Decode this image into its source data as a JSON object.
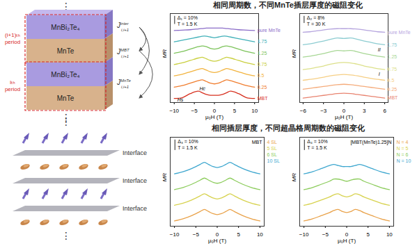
{
  "headings": [
    "相同周期数，不同MnTe插层厚度的磁阻变化",
    "相同插层厚度，不同超晶格周期数的磁阻变化"
  ],
  "diagram": {
    "continuation": "⋮",
    "periods": [
      {
        "label": "(i+1)ₜₕ period",
        "layers": [
          "MnBi₂Te₄",
          "MnTe"
        ]
      },
      {
        "label": "iₜₕ period",
        "layers": [
          "MnBi₂Te₄",
          "MnTe"
        ]
      }
    ],
    "couplings": [
      {
        "symbol": "J",
        "sup": "inter",
        "sub": "i,i+1"
      },
      {
        "symbol": "J",
        "sup": "MBT",
        "sub": "i,i+1"
      },
      {
        "symbol": "J",
        "sup": "MnTe",
        "sub": "i,i+1"
      }
    ],
    "interfaces": [
      "Interface",
      "Interface",
      "Interface"
    ]
  },
  "chart_data": [
    {
      "type": "line",
      "x_label": "μ₀H (T)",
      "y_label": "MR",
      "condition": "T = 1.5 K",
      "scale_bar": {
        "value": 10,
        "label": "Δ₁ = 10%"
      },
      "x": [
        -10,
        -8,
        -6,
        -4,
        -3,
        -2,
        -1,
        0,
        1,
        2,
        3,
        4,
        6,
        8,
        10
      ],
      "xlim": [
        -11,
        11
      ],
      "xticks": [
        -10,
        -5,
        0,
        5,
        10
      ],
      "ylim": [
        -5,
        105
      ],
      "tick_labels": "x",
      "legend": "right",
      "annotations": [
        {
          "text": "Hs",
          "x": -8.5,
          "y": -2
        },
        {
          "text": "Hc",
          "x": -3,
          "y": 12
        }
      ],
      "series": [
        {
          "name": "pure MnTe",
          "color": "#8a6cc8",
          "values": [
            84,
            84.5,
            85,
            86,
            86.5,
            87,
            87,
            87,
            87,
            87,
            86.5,
            86,
            85,
            84.5,
            84
          ]
        },
        {
          "name": "1.75",
          "color": "#3fb0b8",
          "values": [
            70,
            72,
            74,
            76,
            77,
            77,
            76,
            75,
            76,
            77,
            77,
            76,
            74,
            72,
            70
          ]
        },
        {
          "name": "1.25",
          "color": "#7cc35a",
          "values": [
            56,
            58,
            61,
            64,
            65,
            64,
            62,
            61,
            62,
            64,
            65,
            64,
            61,
            58,
            56
          ]
        },
        {
          "name": "0.75",
          "color": "#c9cf3e",
          "values": [
            42,
            44,
            47,
            50,
            51,
            49,
            47,
            46,
            47,
            49,
            51,
            50,
            47,
            44,
            42
          ]
        },
        {
          "name": "0.5",
          "color": "#f2b33d",
          "values": [
            28,
            30,
            33,
            36,
            37,
            35,
            33,
            32,
            33,
            35,
            37,
            36,
            33,
            30,
            28
          ]
        },
        {
          "name": "0.25",
          "color": "#f07d2e",
          "values": [
            14,
            16,
            19,
            22,
            23,
            21,
            19,
            18,
            19,
            21,
            23,
            22,
            19,
            16,
            14
          ]
        },
        {
          "name": "MBT",
          "color": "#d7301f",
          "values": [
            0,
            1,
            6,
            9,
            7,
            5,
            4,
            4,
            4,
            5,
            7,
            9,
            6,
            1,
            0
          ]
        }
      ]
    },
    {
      "type": "line",
      "x_label": "μ₀H (T)",
      "y_label": "MR",
      "condition": "T = 30 K",
      "scale_bar": {
        "value": 8,
        "label": "Δ₂ = 8%"
      },
      "x": [
        -6,
        -5,
        -4,
        -3,
        -2,
        -1,
        0,
        1,
        2,
        3,
        4,
        5,
        6
      ],
      "xlim": [
        -6.5,
        6.5
      ],
      "xticks": [
        -6,
        -3,
        0,
        3,
        6
      ],
      "ylim": [
        -5,
        95
      ],
      "tick_labels": "x",
      "legend": "right",
      "annotations": [
        {
          "text": "II",
          "x": 5.2,
          "y": 54
        },
        {
          "text": "I",
          "x": 5.2,
          "y": 27
        }
      ],
      "series": [
        {
          "name": "pure MnTe",
          "color": "#b5a4de",
          "values": [
            74,
            74.5,
            75.5,
            76.5,
            77.5,
            78,
            78,
            78,
            77.5,
            76.5,
            75.5,
            74.5,
            74
          ]
        },
        {
          "name": "1.75",
          "color": "#8cccd1",
          "values": [
            60,
            61,
            62.5,
            64,
            66,
            67.5,
            67,
            67.5,
            66,
            64,
            62.5,
            61,
            60
          ]
        },
        {
          "name": "1.25",
          "color": "#a8d795",
          "values": [
            46,
            47,
            48.5,
            50,
            52,
            53.5,
            53,
            53.5,
            52,
            50,
            48.5,
            47,
            46
          ]
        },
        {
          "name": "0.75",
          "color": "#dce08a",
          "values": [
            32,
            33,
            34.5,
            36,
            38,
            39.5,
            40,
            39.5,
            38,
            36,
            34.5,
            33,
            32
          ]
        },
        {
          "name": "0.5",
          "color": "#f6cf85",
          "values": [
            20,
            21,
            22,
            23.5,
            25,
            26,
            26.5,
            26,
            25,
            23.5,
            22,
            21,
            20
          ]
        },
        {
          "name": "0.25",
          "color": "#f5ab7a",
          "values": [
            10,
            11,
            12,
            13,
            14,
            15,
            15.5,
            15,
            14,
            13,
            12,
            11,
            10
          ]
        },
        {
          "name": "MBT",
          "color": "#e8836f",
          "values": [
            0,
            1,
            2,
            3,
            4,
            5,
            5.5,
            5,
            4,
            3,
            2,
            1,
            0
          ]
        }
      ]
    },
    {
      "type": "line",
      "title": "MBT",
      "x_label": "μ₀H (T)",
      "y_label": "MR",
      "condition": "T = 1.5 K",
      "scale_bar": {
        "value": 10,
        "label": "Δ₃ = 10%"
      },
      "x": [
        -10,
        -8,
        -6,
        -4,
        -3,
        -2,
        -1,
        0,
        1,
        2,
        3,
        4,
        6,
        8,
        10
      ],
      "xlim": [
        -11,
        11
      ],
      "xticks": [
        -10,
        -5,
        0,
        5,
        10
      ],
      "ylim": [
        -5,
        80
      ],
      "tick_labels": "x",
      "legend": "top-right",
      "series": [
        {
          "name": "4 SL",
          "color": "#e9a24a",
          "values": [
            0,
            2,
            5,
            9,
            11,
            9,
            7,
            6,
            7,
            9,
            11,
            9,
            5,
            2,
            0
          ]
        },
        {
          "name": "5 SL",
          "color": "#d7d24e",
          "values": [
            15,
            17,
            20,
            24,
            26,
            24,
            22,
            21,
            22,
            24,
            26,
            24,
            20,
            17,
            15
          ]
        },
        {
          "name": "6 SL",
          "color": "#8ccc5c",
          "values": [
            30,
            32,
            35,
            39,
            41,
            39,
            37,
            36,
            37,
            39,
            41,
            39,
            35,
            32,
            30
          ]
        },
        {
          "name": "10 SL",
          "color": "#3ea7cf",
          "values": [
            45,
            47,
            50,
            54,
            56,
            54,
            52,
            51,
            52,
            54,
            56,
            54,
            50,
            47,
            45
          ]
        }
      ]
    },
    {
      "type": "line",
      "title": "[MBT(MnTe)1.25]N",
      "x_label": "μ₀H (T)",
      "y_label": "MR",
      "condition": "T = 1.5 K",
      "scale_bar": {
        "value": 10,
        "label": "Δ₄ = 10%"
      },
      "x": [
        -10,
        -8,
        -6,
        -4,
        -3,
        -2,
        -1,
        0,
        1,
        2,
        3,
        4,
        6,
        8,
        10
      ],
      "xlim": [
        -11,
        11
      ],
      "xticks": [
        -10,
        -5,
        0,
        5,
        10
      ],
      "ylim": [
        -5,
        80
      ],
      "tick_labels": "x",
      "legend": "top-right",
      "series": [
        {
          "name": "N = 4",
          "color": "#e9a24a",
          "values": [
            0,
            2,
            5,
            8,
            10,
            11,
            9,
            8,
            9,
            11,
            10,
            8,
            5,
            2,
            0
          ]
        },
        {
          "name": "N = 5",
          "color": "#d7d24e",
          "values": [
            15,
            17,
            20,
            23,
            25,
            26,
            24,
            23,
            24,
            26,
            25,
            23,
            20,
            17,
            15
          ]
        },
        {
          "name": "N = 6",
          "color": "#8ccc5c",
          "values": [
            30,
            32,
            35,
            38,
            40,
            40,
            39,
            38,
            39,
            40,
            40,
            38,
            35,
            32,
            30
          ]
        },
        {
          "name": "N = 10",
          "color": "#3ea7cf",
          "values": [
            45,
            47,
            50,
            53,
            54,
            53,
            52,
            52,
            52,
            53,
            54,
            53,
            50,
            47,
            45
          ]
        }
      ]
    }
  ]
}
